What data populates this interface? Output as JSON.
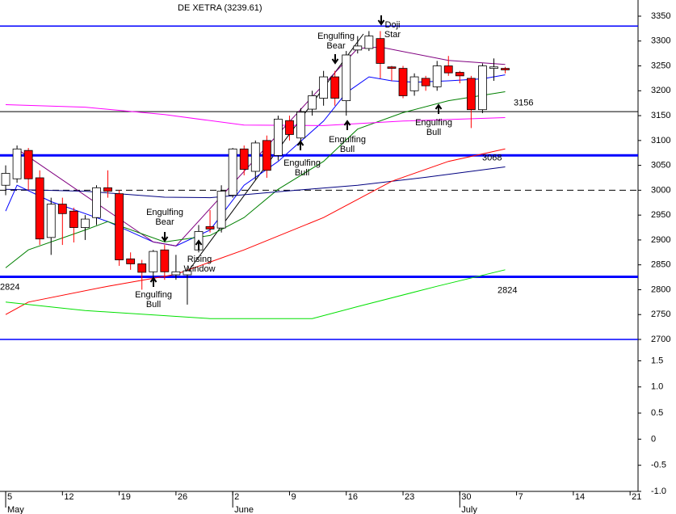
{
  "chart_data": {
    "type": "candlestick",
    "title": "DE XETRA (3239.61)",
    "up_color": "#ffffff",
    "down_color": "#ff0000",
    "x": [
      0,
      1,
      2,
      3,
      4,
      5,
      6,
      7,
      8,
      9,
      10,
      11,
      12,
      13,
      14,
      15,
      16,
      17,
      18,
      19,
      20,
      21,
      22,
      23,
      24,
      25,
      26,
      27,
      28,
      29,
      30,
      31,
      32,
      33,
      34,
      35,
      36,
      37,
      38,
      39,
      40,
      41,
      42,
      43,
      44
    ],
    "open": [
      3010,
      3023,
      3080,
      3025,
      2905,
      2972,
      2958,
      2925,
      2945,
      3005,
      2993,
      2862,
      2852,
      2836,
      2880,
      2830,
      2830,
      2880,
      2927,
      2924,
      2990,
      3083,
      3038,
      3100,
      3070,
      3140,
      3105,
      3163,
      3185,
      3228,
      3180,
      3282,
      3285,
      3305,
      3248,
      3245,
      3200,
      3225,
      3208,
      3250,
      3237,
      3225,
      3162,
      3245,
      3245
    ],
    "high": [
      3050,
      3090,
      3085,
      3040,
      2985,
      2985,
      2965,
      2950,
      3010,
      3040,
      3000,
      2875,
      2860,
      2880,
      2890,
      2870,
      2845,
      2930,
      2960,
      3010,
      3085,
      3090,
      3100,
      3110,
      3150,
      3150,
      3165,
      3200,
      3240,
      3240,
      3280,
      3310,
      3320,
      3320,
      3250,
      3250,
      3235,
      3230,
      3260,
      3270,
      3240,
      3230,
      3255,
      3265,
      3248
    ],
    "low": [
      2990,
      3015,
      3000,
      2890,
      2870,
      2890,
      2895,
      2900,
      2930,
      2985,
      2848,
      2840,
      2800,
      2815,
      2820,
      2820,
      2770,
      2875,
      2915,
      2915,
      2985,
      3030,
      3020,
      3025,
      3060,
      3100,
      3095,
      3150,
      3170,
      3170,
      3150,
      3275,
      3280,
      3225,
      3220,
      3185,
      3190,
      3200,
      3200,
      3230,
      3215,
      3125,
      3155,
      3220,
      3235
    ],
    "close": [
      3034,
      3083,
      3023,
      2902,
      2972,
      2953,
      2925,
      2942,
      3005,
      2998,
      2860,
      2852,
      2835,
      2877,
      2836,
      2836,
      2838,
      2917,
      2922,
      2998,
      3083,
      3042,
      3095,
      3040,
      3143,
      3112,
      3157,
      3190,
      3228,
      3185,
      3272,
      3290,
      3310,
      3255,
      3245,
      3190,
      3228,
      3210,
      3250,
      3236,
      3230,
      3162,
      3250,
      3248,
      3242
    ],
    "series": [
      {
        "color": "#0000ff",
        "x": [
          0,
          1,
          4,
          9,
          13,
          15,
          18,
          21,
          24,
          28,
          30,
          32,
          34,
          36,
          39,
          42,
          44
        ],
        "values": [
          2958,
          3010,
          2977,
          2937,
          2896,
          2888,
          2920,
          3010,
          3058,
          3139,
          3196,
          3228,
          3220,
          3217,
          3220,
          3224,
          3232
        ]
      },
      {
        "color": "#800080",
        "x": [
          1,
          13,
          15,
          27,
          31,
          33,
          39,
          44
        ],
        "values": [
          3083,
          2896,
          2888,
          3188,
          3285,
          3288,
          3261,
          3253
        ]
      },
      {
        "color": "#008000",
        "x": [
          0,
          2,
          7,
          9,
          14,
          18,
          21,
          24,
          28,
          31,
          35,
          39,
          44
        ],
        "values": [
          2844,
          2880,
          2920,
          2937,
          2896,
          2909,
          2945,
          3002,
          3058,
          3123,
          3156,
          3180,
          3198
        ]
      },
      {
        "color": "#ff00ff",
        "x": [
          0,
          7,
          14,
          21,
          28,
          35,
          44
        ],
        "values": [
          3172,
          3167,
          3152,
          3131,
          3130,
          3139,
          3146
        ]
      },
      {
        "color": "#000080",
        "x": [
          0,
          7,
          14,
          18,
          24,
          31,
          37,
          44
        ],
        "values": [
          3002,
          2998,
          2986,
          2985,
          2997,
          3010,
          3026,
          3047
        ]
      },
      {
        "color": "#ff0000",
        "x": [
          0,
          2,
          9,
          15,
          21,
          28,
          34,
          39,
          44
        ],
        "values": [
          2750,
          2775,
          2807,
          2831,
          2880,
          2945,
          3018,
          3058,
          3083
        ]
      },
      {
        "color": "#00e000",
        "x": [
          0,
          7,
          18,
          27,
          31,
          38,
          44
        ],
        "values": [
          2775,
          2758,
          2742,
          2742,
          2766,
          2807,
          2840
        ]
      }
    ],
    "hlines": [
      {
        "value": 3330,
        "color": "#0000ff",
        "width": 1.5
      },
      {
        "value": 3158,
        "color": "#000000",
        "width": 1
      },
      {
        "value": 3070,
        "color": "#0000ff",
        "width": 3
      },
      {
        "value": 3000,
        "color": "#000000",
        "width": 1,
        "dashed": true
      },
      {
        "value": 2826,
        "color": "#0000ff",
        "width": 3
      },
      {
        "value": 2700,
        "color": "#0000ff",
        "width": 1.5
      }
    ],
    "level_labels": [
      {
        "value": 3156,
        "color": "#0000cc"
      },
      {
        "value": 3068,
        "color": "#0000cc"
      },
      {
        "value": 2824,
        "color": "#0000cc"
      },
      {
        "value": 2824,
        "color": "#0000cc"
      }
    ],
    "annotations": [
      {
        "lines": [
          "Engulfing",
          "Bear"
        ]
      },
      {
        "lines": [
          "Doji",
          "Star"
        ]
      },
      {
        "lines": [
          "Engulfing",
          "Bull"
        ]
      },
      {
        "lines": [
          "Engulfing",
          "Bull"
        ]
      },
      {
        "lines": [
          "Engulfing",
          "Bull"
        ]
      },
      {
        "lines": [
          "Engulfing",
          "Bear"
        ]
      },
      {
        "lines": [
          "Engulfing",
          "Bull"
        ]
      },
      {
        "lines": [
          "Rising",
          "Window"
        ]
      }
    ],
    "xlim": [
      -0.5,
      55.7
    ],
    "xticks": [
      {
        "value": 0,
        "label": "5"
      },
      {
        "value": 5,
        "label": "12"
      },
      {
        "value": 10,
        "label": "19"
      },
      {
        "value": 15,
        "label": "26"
      },
      {
        "value": 20,
        "label": "2"
      },
      {
        "value": 25,
        "label": "9"
      },
      {
        "value": 30,
        "label": "16"
      },
      {
        "value": 35,
        "label": "23"
      },
      {
        "value": 40,
        "label": "30"
      },
      {
        "value": 45,
        "label": "7"
      },
      {
        "value": 50,
        "label": "14"
      },
      {
        "value": 55,
        "label": "21"
      }
    ],
    "months": [
      {
        "value": 0,
        "label": "May"
      },
      {
        "value": 20,
        "label": "June"
      },
      {
        "value": 40,
        "label": "July"
      }
    ],
    "ylim": [
      2700,
      3350
    ],
    "yticks": [
      3350,
      3300,
      3250,
      3200,
      3150,
      3100,
      3050,
      3000,
      2950,
      2900,
      2850,
      2800,
      2750,
      2700
    ],
    "y2lim": [
      -1,
      1.6
    ],
    "y2ticks": [
      1.5,
      {
        "value": 1,
        "label": "1.0"
      },
      0.5,
      0,
      -0.5,
      {
        "value": -1,
        "label": "-1.0"
      }
    ]
  }
}
